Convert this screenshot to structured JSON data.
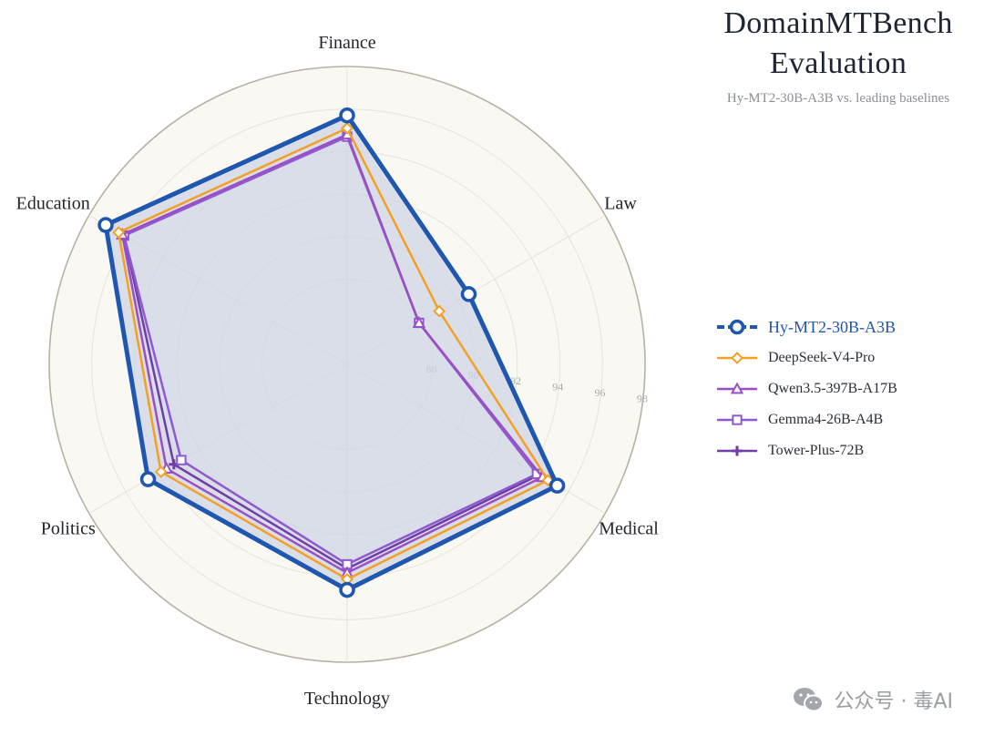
{
  "title": {
    "line1": "DomainMTBench",
    "line2": "Evaluation"
  },
  "subtitle": "Hy-MT2-30B-A3B vs. leading baselines",
  "watermark": {
    "text": "公众号 · 毒AI",
    "icon": "wechat-icon"
  },
  "chart_data": {
    "type": "radar",
    "categories": [
      "Finance",
      "Law",
      "Medical",
      "Technology",
      "Politics",
      "Education"
    ],
    "rlim": [
      84,
      98
    ],
    "rticks": [
      88,
      90,
      92,
      94,
      96,
      98
    ],
    "series": [
      {
        "name": "Hy-MT2-30B-A3B",
        "values": [
          95.7,
          90.6,
          95.4,
          94.6,
          94.8,
          97.1
        ],
        "color": "#1f56b0",
        "marker": "circle"
      },
      {
        "name": "DeepSeek-V4-Pro",
        "values": [
          95.1,
          89.0,
          94.9,
          94.1,
          94.1,
          96.4
        ],
        "color": "#f3a024",
        "marker": "diamond"
      },
      {
        "name": "Qwen3.5-397B-A17B",
        "values": [
          94.8,
          87.9,
          94.6,
          93.8,
          93.8,
          96.2
        ],
        "color": "#9b4fc4",
        "marker": "triangle"
      },
      {
        "name": "Gemma4-26B-A4B",
        "values": [
          94.7,
          87.9,
          94.3,
          93.4,
          93.0,
          96.1
        ],
        "color": "#8f5ad1",
        "marker": "square"
      },
      {
        "name": "Tower-Plus-72B",
        "values": [
          94.8,
          87.9,
          94.4,
          93.6,
          93.4,
          96.1
        ],
        "color": "#6f3ea6",
        "marker": "plus"
      }
    ],
    "grid": true,
    "legend_position": "right",
    "fill_color": "#cdd6e6"
  }
}
